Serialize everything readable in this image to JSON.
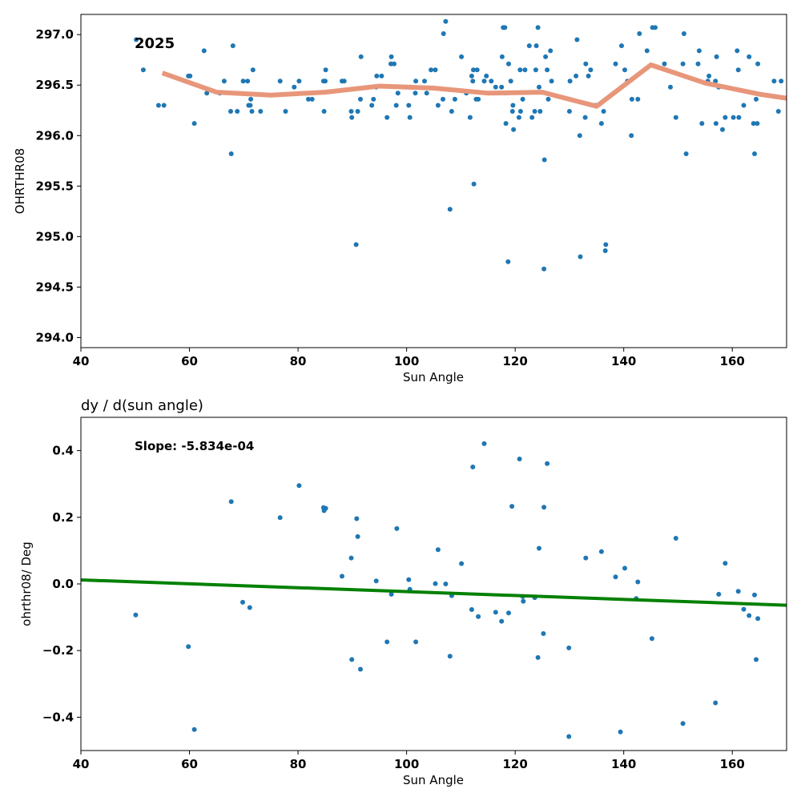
{
  "chart_data": [
    {
      "type": "scatter",
      "title": "",
      "annotation": "2025",
      "xlabel": "Sun Angle",
      "ylabel": "OHRTHR08",
      "xlim": [
        40,
        170
      ],
      "ylim": [
        293.9,
        297.2
      ],
      "xticks": [
        40,
        60,
        80,
        100,
        120,
        140,
        160
      ],
      "yticks": [
        294.0,
        294.5,
        295.0,
        295.5,
        296.0,
        296.5,
        297.0
      ],
      "ytick_labels": [
        "294.0",
        "294.5",
        "295.0",
        "295.5",
        "296.0",
        "296.5",
        "297.0"
      ],
      "grid": false,
      "colors": {
        "points": "#1f77b4",
        "trend": "#e8967a"
      },
      "trend_line": {
        "x": [
          55,
          65,
          75,
          85,
          95,
          105,
          115,
          125,
          135,
          145,
          155,
          165,
          170
        ],
        "y": [
          296.62,
          296.43,
          296.4,
          296.43,
          296.49,
          296.47,
          296.42,
          296.43,
          296.29,
          296.7,
          296.52,
          296.41,
          296.37
        ]
      },
      "points": [
        [
          50.2,
          296.95
        ],
        [
          51.5,
          296.65
        ],
        [
          54.3,
          296.3
        ],
        [
          55.3,
          296.3
        ],
        [
          59.8,
          296.59
        ],
        [
          60.1,
          296.59
        ],
        [
          60.9,
          296.12
        ],
        [
          62.7,
          296.84
        ],
        [
          63.2,
          296.42
        ],
        [
          65.6,
          296.42
        ],
        [
          66.4,
          296.54
        ],
        [
          67.6,
          296.24
        ],
        [
          67.7,
          295.82
        ],
        [
          68.0,
          296.89
        ],
        [
          68.8,
          296.24
        ],
        [
          69.9,
          296.54
        ],
        [
          70.7,
          296.54
        ],
        [
          70.9,
          296.3
        ],
        [
          71.2,
          296.3
        ],
        [
          71.3,
          296.36
        ],
        [
          71.5,
          296.24
        ],
        [
          71.7,
          296.65
        ],
        [
          73.1,
          296.24
        ],
        [
          76.7,
          296.54
        ],
        [
          77.7,
          296.24
        ],
        [
          79.3,
          296.48
        ],
        [
          80.2,
          296.54
        ],
        [
          81.9,
          296.36
        ],
        [
          82.6,
          296.36
        ],
        [
          84.7,
          296.54
        ],
        [
          84.8,
          296.24
        ],
        [
          85.0,
          296.54
        ],
        [
          85.1,
          296.65
        ],
        [
          88.1,
          296.54
        ],
        [
          88.5,
          296.54
        ],
        [
          89.8,
          296.24
        ],
        [
          89.9,
          296.18
        ],
        [
          90.7,
          294.92
        ],
        [
          91.0,
          296.24
        ],
        [
          91.5,
          296.36
        ],
        [
          91.6,
          296.78
        ],
        [
          93.6,
          296.3
        ],
        [
          93.9,
          296.36
        ],
        [
          94.4,
          296.48
        ],
        [
          94.5,
          296.59
        ],
        [
          95.4,
          296.59
        ],
        [
          96.4,
          296.18
        ],
        [
          97.1,
          296.71
        ],
        [
          97.2,
          296.78
        ],
        [
          97.7,
          296.71
        ],
        [
          98.1,
          296.3
        ],
        [
          98.4,
          296.42
        ],
        [
          100.4,
          296.3
        ],
        [
          100.6,
          296.18
        ],
        [
          100.7,
          296.48
        ],
        [
          101.6,
          296.42
        ],
        [
          101.7,
          296.54
        ],
        [
          103.3,
          296.54
        ],
        [
          103.7,
          296.42
        ],
        [
          104.5,
          296.65
        ],
        [
          105.3,
          296.65
        ],
        [
          105.8,
          296.3
        ],
        [
          106.7,
          296.36
        ],
        [
          106.8,
          297.01
        ],
        [
          107.2,
          297.13
        ],
        [
          108.0,
          295.27
        ],
        [
          108.3,
          296.24
        ],
        [
          108.9,
          296.36
        ],
        [
          110.1,
          296.78
        ],
        [
          111.0,
          296.42
        ],
        [
          111.7,
          296.18
        ],
        [
          112.0,
          296.59
        ],
        [
          112.2,
          296.54
        ],
        [
          112.3,
          296.65
        ],
        [
          112.4,
          295.52
        ],
        [
          112.8,
          296.36
        ],
        [
          113.0,
          296.65
        ],
        [
          113.2,
          296.36
        ],
        [
          114.3,
          296.54
        ],
        [
          114.7,
          296.59
        ],
        [
          115.6,
          296.54
        ],
        [
          116.4,
          296.48
        ],
        [
          117.5,
          296.48
        ],
        [
          117.6,
          296.78
        ],
        [
          117.8,
          297.07
        ],
        [
          118.1,
          297.07
        ],
        [
          118.2,
          296.42
        ],
        [
          118.3,
          296.12
        ],
        [
          118.7,
          294.75
        ],
        [
          118.8,
          296.71
        ],
        [
          119.2,
          296.54
        ],
        [
          119.5,
          296.24
        ],
        [
          119.6,
          296.3
        ],
        [
          119.7,
          296.06
        ],
        [
          120.7,
          296.18
        ],
        [
          120.9,
          296.65
        ],
        [
          121.0,
          296.24
        ],
        [
          121.4,
          296.36
        ],
        [
          121.8,
          296.65
        ],
        [
          122.6,
          296.89
        ],
        [
          123.1,
          296.18
        ],
        [
          123.6,
          296.24
        ],
        [
          123.8,
          296.65
        ],
        [
          123.9,
          296.89
        ],
        [
          124.2,
          297.07
        ],
        [
          124.4,
          296.48
        ],
        [
          124.6,
          296.24
        ],
        [
          125.3,
          294.68
        ],
        [
          125.4,
          295.76
        ],
        [
          125.6,
          296.78
        ],
        [
          125.9,
          296.65
        ],
        [
          126.1,
          296.36
        ],
        [
          126.5,
          296.84
        ],
        [
          126.7,
          296.54
        ],
        [
          130.0,
          296.24
        ],
        [
          130.1,
          296.54
        ],
        [
          131.2,
          296.59
        ],
        [
          131.4,
          296.95
        ],
        [
          131.9,
          296.0
        ],
        [
          132.0,
          294.8
        ],
        [
          132.9,
          296.18
        ],
        [
          133.0,
          296.71
        ],
        [
          133.5,
          296.59
        ],
        [
          133.9,
          296.65
        ],
        [
          134.8,
          296.3
        ],
        [
          135.9,
          296.12
        ],
        [
          136.3,
          296.24
        ],
        [
          136.6,
          294.86
        ],
        [
          136.7,
          294.92
        ],
        [
          138.5,
          296.71
        ],
        [
          139.6,
          296.89
        ],
        [
          140.2,
          296.65
        ],
        [
          140.7,
          296.54
        ],
        [
          141.4,
          296.0
        ],
        [
          141.5,
          296.36
        ],
        [
          142.6,
          296.36
        ],
        [
          142.9,
          297.01
        ],
        [
          144.3,
          296.84
        ],
        [
          145.3,
          297.07
        ],
        [
          145.8,
          297.07
        ],
        [
          147.5,
          296.71
        ],
        [
          148.6,
          296.48
        ],
        [
          149.6,
          296.18
        ],
        [
          150.9,
          296.71
        ],
        [
          151.1,
          297.01
        ],
        [
          151.5,
          295.82
        ],
        [
          153.7,
          296.71
        ],
        [
          153.9,
          296.84
        ],
        [
          154.4,
          296.12
        ],
        [
          155.5,
          296.54
        ],
        [
          155.7,
          296.59
        ],
        [
          156.9,
          296.54
        ],
        [
          157.0,
          296.12
        ],
        [
          157.1,
          296.78
        ],
        [
          157.5,
          296.48
        ],
        [
          158.2,
          296.06
        ],
        [
          158.7,
          296.18
        ],
        [
          160.2,
          296.18
        ],
        [
          160.9,
          296.84
        ],
        [
          161.1,
          296.65
        ],
        [
          161.2,
          296.18
        ],
        [
          162.1,
          296.3
        ],
        [
          163.1,
          296.78
        ],
        [
          163.9,
          296.12
        ],
        [
          164.1,
          295.82
        ],
        [
          164.4,
          296.36
        ],
        [
          164.6,
          296.12
        ],
        [
          164.7,
          296.71
        ],
        [
          167.7,
          296.54
        ],
        [
          168.5,
          296.24
        ],
        [
          169.0,
          296.54
        ]
      ]
    },
    {
      "type": "scatter",
      "title": "dy / d(sun angle)",
      "annotation": "Slope: -5.834e-04",
      "xlabel": "Sun Angle",
      "ylabel": "ohrthr08/ Deg",
      "xlim": [
        40,
        170
      ],
      "ylim": [
        -0.5,
        0.5
      ],
      "xticks": [
        40,
        60,
        80,
        100,
        120,
        140,
        160
      ],
      "yticks": [
        -0.4,
        -0.2,
        0.0,
        0.2,
        0.4
      ],
      "ytick_labels": [
        "−0.4",
        "−0.2",
        "0.0",
        "0.2",
        "0.4"
      ],
      "grid": false,
      "colors": {
        "points": "#1f77b4",
        "fit": "#008000"
      },
      "fit_line": {
        "x": [
          40,
          170
        ],
        "y": [
          0.012,
          -0.064
        ]
      },
      "points": [
        [
          50.1,
          -0.093
        ],
        [
          59.8,
          -0.188
        ],
        [
          60.9,
          -0.437
        ],
        [
          67.7,
          0.247
        ],
        [
          69.8,
          -0.055
        ],
        [
          71.1,
          -0.071
        ],
        [
          76.7,
          0.199
        ],
        [
          80.2,
          0.295
        ],
        [
          84.7,
          0.229
        ],
        [
          84.8,
          0.22
        ],
        [
          85.1,
          0.227
        ],
        [
          88.1,
          0.023
        ],
        [
          89.8,
          0.078
        ],
        [
          89.9,
          -0.227
        ],
        [
          90.8,
          0.196
        ],
        [
          91.0,
          0.142
        ],
        [
          91.5,
          -0.256
        ],
        [
          94.4,
          0.009
        ],
        [
          96.4,
          -0.174
        ],
        [
          97.2,
          -0.031
        ],
        [
          98.2,
          0.166
        ],
        [
          100.4,
          0.013
        ],
        [
          100.6,
          -0.016
        ],
        [
          101.7,
          -0.174
        ],
        [
          105.3,
          0.001
        ],
        [
          105.8,
          0.103
        ],
        [
          107.2,
          0.0
        ],
        [
          108.0,
          -0.217
        ],
        [
          108.3,
          -0.035
        ],
        [
          110.1,
          0.061
        ],
        [
          112.0,
          -0.077
        ],
        [
          112.2,
          0.351
        ],
        [
          113.2,
          -0.098
        ],
        [
          114.3,
          0.421
        ],
        [
          116.4,
          -0.085
        ],
        [
          117.5,
          -0.112
        ],
        [
          118.8,
          -0.087
        ],
        [
          119.4,
          0.233
        ],
        [
          120.8,
          0.375
        ],
        [
          121.5,
          -0.052
        ],
        [
          121.4,
          -0.038
        ],
        [
          123.6,
          -0.041
        ],
        [
          124.2,
          -0.221
        ],
        [
          124.4,
          0.107
        ],
        [
          125.3,
          0.23
        ],
        [
          125.2,
          -0.149
        ],
        [
          125.9,
          0.361
        ],
        [
          129.9,
          -0.458
        ],
        [
          129.9,
          -0.192
        ],
        [
          133.0,
          0.078
        ],
        [
          135.9,
          0.097
        ],
        [
          138.5,
          0.021
        ],
        [
          139.4,
          -0.444
        ],
        [
          140.2,
          0.047
        ],
        [
          142.3,
          -0.044
        ],
        [
          142.6,
          0.006
        ],
        [
          145.2,
          -0.164
        ],
        [
          149.6,
          0.137
        ],
        [
          150.9,
          -0.419
        ],
        [
          156.9,
          -0.357
        ],
        [
          157.5,
          -0.031
        ],
        [
          158.7,
          0.062
        ],
        [
          161.1,
          -0.022
        ],
        [
          162.1,
          -0.076
        ],
        [
          163.1,
          -0.095
        ],
        [
          164.1,
          -0.033
        ],
        [
          164.4,
          -0.227
        ],
        [
          164.7,
          -0.104
        ]
      ]
    }
  ]
}
